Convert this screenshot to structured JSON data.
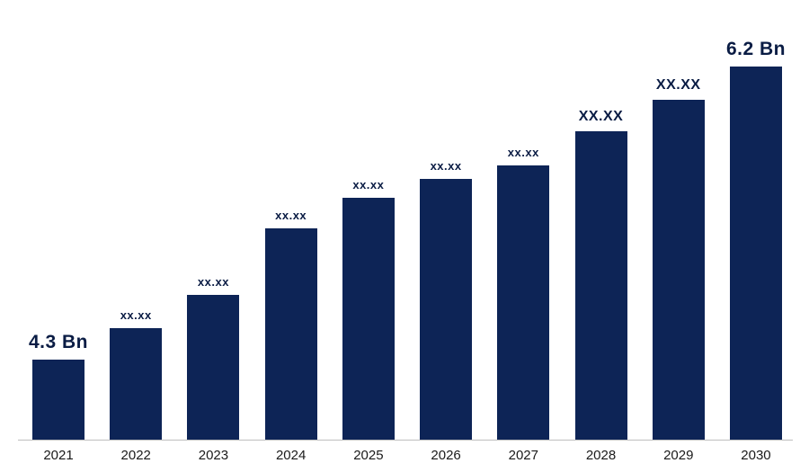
{
  "chart_data": {
    "type": "bar",
    "title": "",
    "xlabel": "",
    "ylabel": "",
    "categories": [
      "2021",
      "2022",
      "2023",
      "2024",
      "2025",
      "2026",
      "2027",
      "2028",
      "2029",
      "2030"
    ],
    "values": [
      4.3,
      4.5,
      4.72,
      5.15,
      5.35,
      5.47,
      5.56,
      5.78,
      5.98,
      6.2
    ],
    "ylim": [
      3.78,
      6.45
    ],
    "grid": false,
    "legend": "none",
    "bar_color": "#0d2456",
    "label_color": "#0a1c44",
    "data_labels": [
      {
        "text": "4.3 Bn",
        "size": "large"
      },
      {
        "text": "xx.xx",
        "size": "small"
      },
      {
        "text": "xx.xx",
        "size": "small"
      },
      {
        "text": "xx.xx",
        "size": "small"
      },
      {
        "text": "xx.xx",
        "size": "small"
      },
      {
        "text": "xx.xx",
        "size": "small"
      },
      {
        "text": "xx.xx",
        "size": "small"
      },
      {
        "text": "XX.XX",
        "size": "medium"
      },
      {
        "text": "XX.XX",
        "size": "medium"
      },
      {
        "text": "6.2 Bn",
        "size": "large"
      }
    ]
  }
}
